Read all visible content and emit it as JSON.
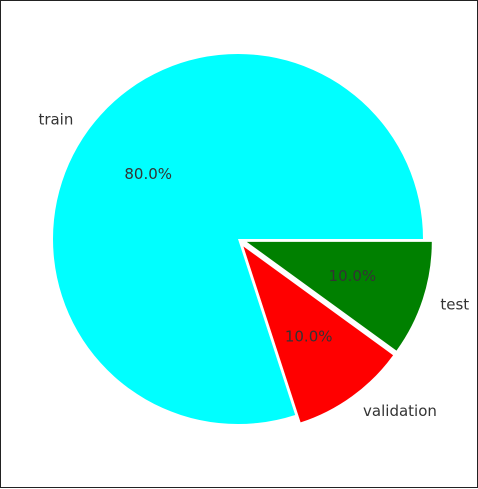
{
  "chart_data": {
    "type": "pie",
    "title": "",
    "slices": [
      {
        "label": "train",
        "value": 80.0,
        "pct_label": "80.0%",
        "color": "#00ffff",
        "explode": 0.0
      },
      {
        "label": "validation",
        "value": 10.0,
        "pct_label": "10.0%",
        "color": "#ff0000",
        "explode": 0.05
      },
      {
        "label": "test",
        "value": 10.0,
        "pct_label": "10.0%",
        "color": "#008000",
        "explode": 0.05
      }
    ],
    "start_angle_deg": 0,
    "direction": "counterclockwise",
    "legend": "none"
  }
}
